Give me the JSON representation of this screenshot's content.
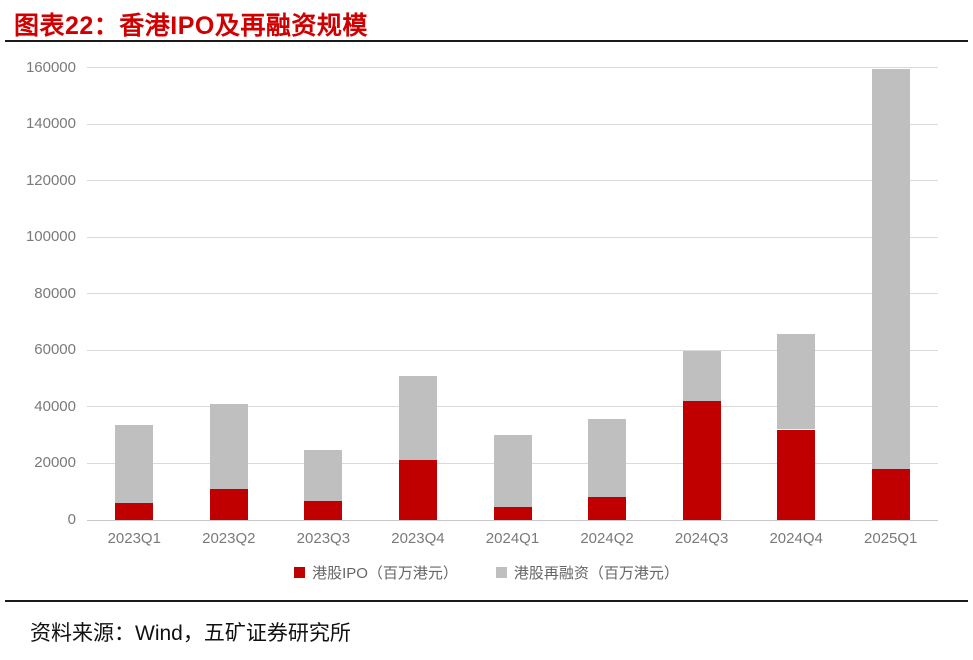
{
  "chart_data": {
    "type": "bar",
    "stacked": true,
    "title": "图表22：香港IPO及再融资规模",
    "categories": [
      "2023Q1",
      "2023Q2",
      "2023Q3",
      "2023Q4",
      "2024Q1",
      "2024Q2",
      "2024Q3",
      "2024Q4",
      "2025Q1"
    ],
    "series": [
      {
        "name": "港股IPO（百万港元）",
        "color": "#C00000",
        "values": [
          6000,
          11000,
          6700,
          21300,
          4600,
          8000,
          42000,
          32000,
          18200
        ]
      },
      {
        "name": "港股再融资（百万港元）",
        "color": "#BFBFBF",
        "values": [
          27500,
          30000,
          18100,
          29500,
          25400,
          27700,
          17800,
          33700,
          141300
        ]
      }
    ],
    "totals": [
      33500,
      41000,
      24800,
      50800,
      30000,
      35700,
      59800,
      65700,
      159500
    ],
    "ylim": [
      0,
      160000
    ],
    "ytick_step": 20000,
    "yticks": [
      "0",
      "20000",
      "40000",
      "60000",
      "80000",
      "100000",
      "120000",
      "140000",
      "160000"
    ],
    "xlabel": "",
    "ylabel": "",
    "grid": true,
    "legend_position": "bottom"
  },
  "footer": {
    "source": "资料来源：Wind，五矿证券研究所"
  },
  "colors": {
    "title": "#D00000",
    "ipo": "#C00000",
    "refinance": "#BFBFBF",
    "gridline": "#DADADA",
    "axis_line": "#C9C9C9",
    "tick_label": "#7A7A7A",
    "legend_text": "#666666",
    "rule": "#1A1A1A"
  }
}
